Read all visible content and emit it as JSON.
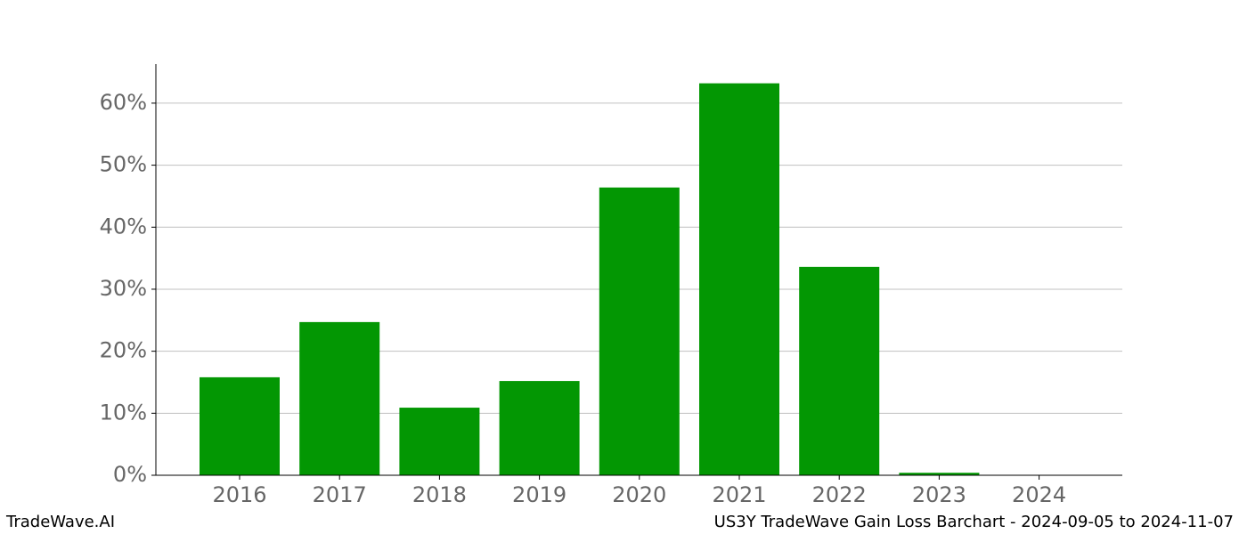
{
  "chart_data": {
    "type": "bar",
    "categories": [
      "2016",
      "2017",
      "2018",
      "2019",
      "2020",
      "2021",
      "2022",
      "2023",
      "2024"
    ],
    "values": [
      15.8,
      24.7,
      10.9,
      15.2,
      46.4,
      63.2,
      33.6,
      0.4,
      0
    ],
    "color": "#039703",
    "ylim": [
      0,
      66.3
    ],
    "yticks": [
      {
        "value": 0,
        "label": "0%"
      },
      {
        "value": 10,
        "label": "10%"
      },
      {
        "value": 20,
        "label": "20%"
      },
      {
        "value": 30,
        "label": "30%"
      },
      {
        "value": 40,
        "label": "40%"
      },
      {
        "value": 50,
        "label": "50%"
      },
      {
        "value": 60,
        "label": "60%"
      }
    ],
    "grid": true
  },
  "footer": {
    "left": "TradeWave.AI",
    "right": "US3Y TradeWave Gain Loss Barchart - 2024-09-05 to 2024-11-07"
  }
}
